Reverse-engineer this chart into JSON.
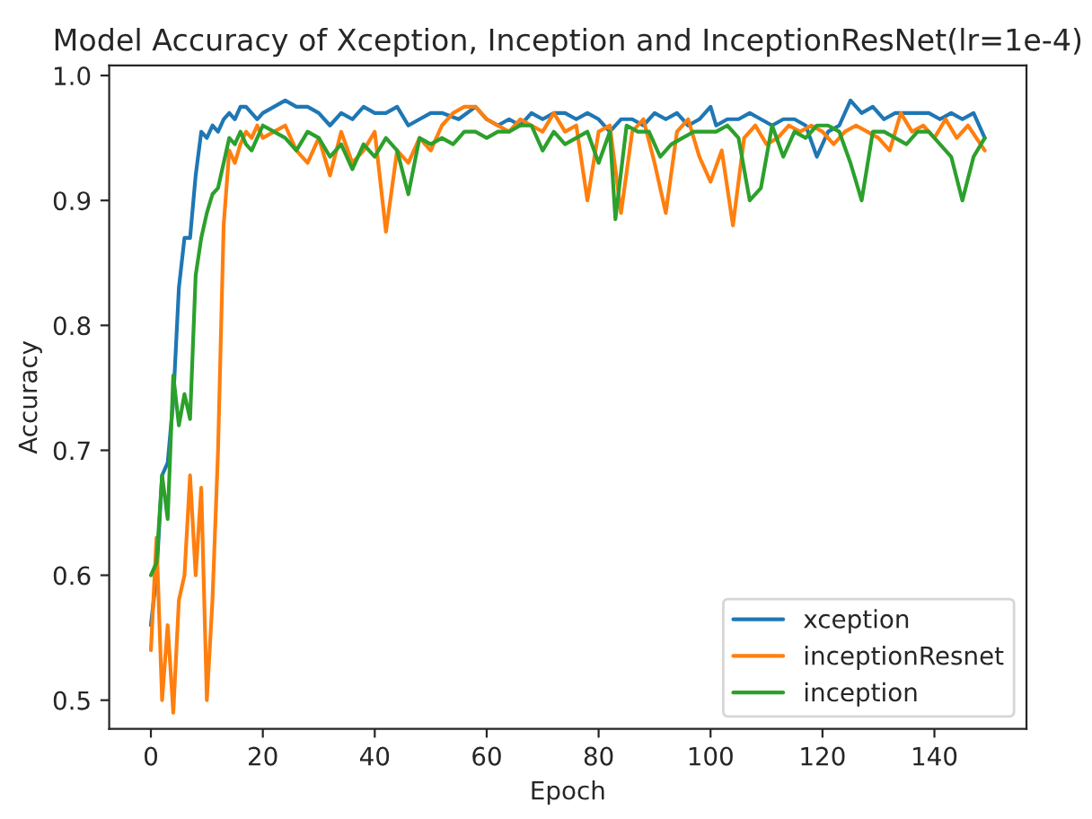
{
  "chart_data": {
    "type": "line",
    "title": "Model Accuracy of Xception, Inception and InceptionResNet(lr=1e-4)",
    "xlabel": "Epoch",
    "ylabel": "Accuracy",
    "xlim": [
      -7.45,
      156.45
    ],
    "ylim": [
      0.477,
      1.008
    ],
    "xticks": [
      0,
      20,
      40,
      60,
      80,
      100,
      120,
      140
    ],
    "yticks": [
      0.5,
      0.6,
      0.7,
      0.8,
      0.9,
      {
        "value": 1.0,
        "label": "1.0"
      }
    ],
    "legend": "lower right",
    "grid": false,
    "series": [
      {
        "name": "xception",
        "color": "#1f77b4",
        "x": [
          0,
          1,
          2,
          3,
          4,
          5,
          6,
          7,
          8,
          9,
          10,
          11,
          12,
          13,
          14,
          15,
          16,
          17,
          18,
          19,
          20,
          22,
          24,
          26,
          28,
          30,
          32,
          34,
          36,
          38,
          40,
          42,
          44,
          46,
          48,
          50,
          52,
          55,
          58,
          60,
          62,
          64,
          66,
          68,
          70,
          72,
          74,
          76,
          78,
          80,
          82,
          84,
          86,
          88,
          90,
          92,
          94,
          96,
          98,
          100,
          101,
          103,
          105,
          107,
          109,
          111,
          113,
          115,
          117,
          119,
          121,
          123,
          125,
          127,
          129,
          131,
          133,
          135,
          137,
          139,
          141,
          143,
          145,
          147,
          149
        ],
        "values": [
          0.56,
          0.6,
          0.68,
          0.69,
          0.74,
          0.83,
          0.87,
          0.87,
          0.92,
          0.955,
          0.95,
          0.96,
          0.955,
          0.965,
          0.97,
          0.965,
          0.975,
          0.975,
          0.97,
          0.965,
          0.97,
          0.975,
          0.98,
          0.975,
          0.975,
          0.97,
          0.96,
          0.97,
          0.965,
          0.975,
          0.97,
          0.97,
          0.975,
          0.96,
          0.965,
          0.97,
          0.97,
          0.965,
          0.975,
          0.965,
          0.96,
          0.965,
          0.96,
          0.97,
          0.965,
          0.97,
          0.97,
          0.965,
          0.97,
          0.965,
          0.955,
          0.965,
          0.965,
          0.96,
          0.97,
          0.965,
          0.97,
          0.96,
          0.965,
          0.975,
          0.96,
          0.965,
          0.965,
          0.97,
          0.965,
          0.96,
          0.965,
          0.965,
          0.96,
          0.935,
          0.955,
          0.96,
          0.98,
          0.97,
          0.975,
          0.965,
          0.97,
          0.97,
          0.97,
          0.97,
          0.965,
          0.97,
          0.965,
          0.97,
          0.95
        ]
      },
      {
        "name": "inceptionResnet",
        "color": "#ff7f0e",
        "x": [
          0,
          1,
          2,
          3,
          4,
          5,
          6,
          7,
          8,
          9,
          10,
          11,
          12,
          13,
          14,
          15,
          16,
          17,
          18,
          19,
          20,
          22,
          24,
          26,
          28,
          30,
          32,
          34,
          36,
          38,
          40,
          42,
          44,
          46,
          48,
          50,
          52,
          54,
          56,
          58,
          60,
          62,
          64,
          66,
          68,
          70,
          72,
          74,
          76,
          78,
          80,
          82,
          84,
          86,
          88,
          90,
          92,
          94,
          96,
          98,
          100,
          102,
          104,
          106,
          108,
          110,
          112,
          114,
          116,
          118,
          120,
          122,
          124,
          126,
          128,
          130,
          132,
          134,
          136,
          138,
          140,
          142,
          144,
          146,
          149
        ],
        "values": [
          0.54,
          0.63,
          0.5,
          0.56,
          0.49,
          0.58,
          0.6,
          0.68,
          0.6,
          0.67,
          0.5,
          0.58,
          0.7,
          0.88,
          0.94,
          0.93,
          0.945,
          0.955,
          0.95,
          0.96,
          0.95,
          0.955,
          0.96,
          0.94,
          0.93,
          0.95,
          0.92,
          0.955,
          0.93,
          0.94,
          0.955,
          0.875,
          0.94,
          0.93,
          0.95,
          0.94,
          0.96,
          0.97,
          0.975,
          0.975,
          0.965,
          0.96,
          0.955,
          0.965,
          0.96,
          0.955,
          0.97,
          0.955,
          0.96,
          0.9,
          0.955,
          0.96,
          0.89,
          0.955,
          0.965,
          0.93,
          0.89,
          0.955,
          0.965,
          0.935,
          0.915,
          0.94,
          0.88,
          0.95,
          0.96,
          0.945,
          0.95,
          0.96,
          0.955,
          0.96,
          0.955,
          0.945,
          0.955,
          0.96,
          0.955,
          0.95,
          0.94,
          0.97,
          0.955,
          0.96,
          0.95,
          0.965,
          0.95,
          0.96,
          0.94
        ]
      },
      {
        "name": "inception",
        "color": "#2ca02c",
        "x": [
          0,
          1,
          2,
          3,
          4,
          5,
          6,
          7,
          8,
          9,
          10,
          11,
          12,
          13,
          14,
          15,
          16,
          17,
          18,
          19,
          20,
          22,
          24,
          26,
          28,
          30,
          32,
          34,
          36,
          38,
          40,
          42,
          44,
          46,
          48,
          50,
          52,
          54,
          56,
          58,
          60,
          62,
          64,
          66,
          68,
          70,
          72,
          74,
          76,
          78,
          80,
          82,
          83,
          85,
          87,
          89,
          91,
          93,
          95,
          97,
          99,
          101,
          103,
          105,
          107,
          109,
          111,
          113,
          115,
          117,
          119,
          121,
          123,
          125,
          127,
          129,
          131,
          133,
          135,
          137,
          139,
          141,
          143,
          145,
          147,
          149
        ],
        "values": [
          0.6,
          0.61,
          0.68,
          0.645,
          0.76,
          0.72,
          0.745,
          0.725,
          0.84,
          0.87,
          0.89,
          0.905,
          0.91,
          0.93,
          0.95,
          0.945,
          0.955,
          0.945,
          0.94,
          0.95,
          0.96,
          0.955,
          0.95,
          0.94,
          0.955,
          0.95,
          0.935,
          0.945,
          0.925,
          0.945,
          0.935,
          0.95,
          0.94,
          0.905,
          0.95,
          0.945,
          0.95,
          0.945,
          0.955,
          0.955,
          0.95,
          0.955,
          0.955,
          0.96,
          0.96,
          0.94,
          0.955,
          0.945,
          0.95,
          0.955,
          0.93,
          0.955,
          0.885,
          0.96,
          0.955,
          0.955,
          0.935,
          0.945,
          0.95,
          0.955,
          0.955,
          0.955,
          0.96,
          0.95,
          0.9,
          0.91,
          0.96,
          0.935,
          0.955,
          0.95,
          0.96,
          0.96,
          0.955,
          0.93,
          0.9,
          0.955,
          0.955,
          0.95,
          0.945,
          0.955,
          0.955,
          0.945,
          0.935,
          0.9,
          0.935,
          0.95
        ]
      }
    ]
  }
}
